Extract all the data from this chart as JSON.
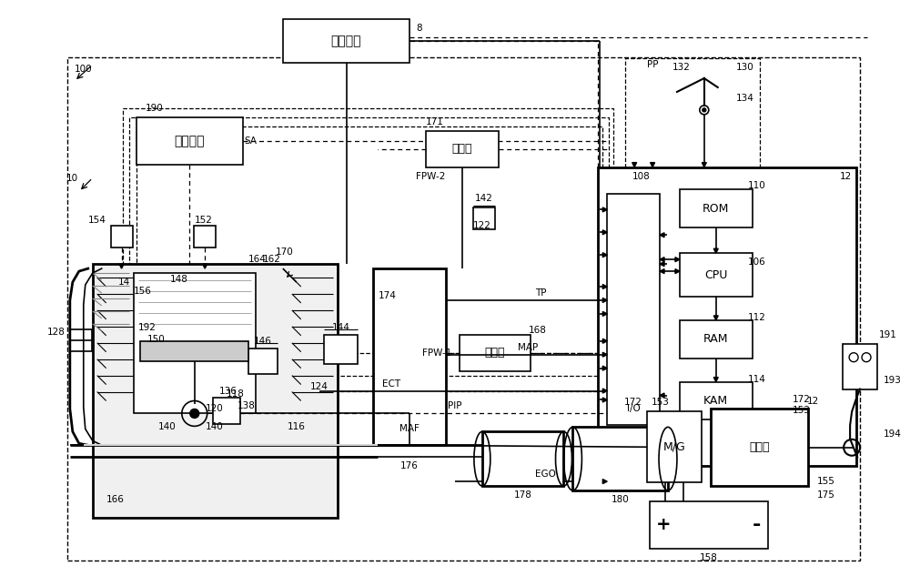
{
  "bg_color": "#ffffff",
  "fig_width": 10.0,
  "fig_height": 6.44,
  "labels": {
    "fuel_system": "燃料系统",
    "ignition": "点火系统",
    "driver1": "驱动器",
    "driver2": "驱动器",
    "transmission": "变速器",
    "mg": "M/G"
  },
  "ref": {
    "n8": "8",
    "n10": "10",
    "n12": "12",
    "n14": "14",
    "n100": "100",
    "n106": "106",
    "n108": "108",
    "n110": "110",
    "n112": "112",
    "n114": "114",
    "n116": "116",
    "n118": "118",
    "n120": "120",
    "n122": "122",
    "n124": "124",
    "n128": "128",
    "n130": "130",
    "n132": "132",
    "n134": "134",
    "n136": "136",
    "n138": "138",
    "n140": "140",
    "n142": "142",
    "n144": "144",
    "n146": "146",
    "n148": "148",
    "n150": "150",
    "n152": "152",
    "n153": "153",
    "n154": "154",
    "n155": "155",
    "n156": "156",
    "n158": "158",
    "n162": "162",
    "n164": "164",
    "n166": "166",
    "n168": "168",
    "n170": "170",
    "n171": "171",
    "n172": "172",
    "n174": "174",
    "n175": "175",
    "n176": "176",
    "n178": "178",
    "n180": "180",
    "n190": "190",
    "n191": "191",
    "n192": "192",
    "n193": "193",
    "n194": "194"
  }
}
